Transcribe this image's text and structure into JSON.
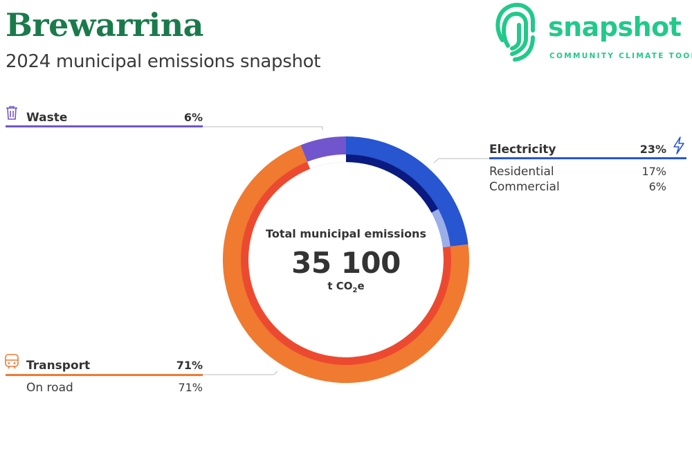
{
  "header": {
    "title": "Brewarrina",
    "subtitle": "2024 municipal emissions snapshot"
  },
  "logo": {
    "word": "snapshot",
    "tagline": "COMMUNITY CLIMATE TOOL",
    "color": "#22c98a"
  },
  "center": {
    "label": "Total municipal emissions",
    "value": "35 100",
    "unit_prefix": "t CO",
    "unit_sub": "2",
    "unit_suffix": "e"
  },
  "chart_data": {
    "type": "pie",
    "style": "donut",
    "total": 35100,
    "unit": "t CO2e",
    "sectors": [
      {
        "name": "Electricity",
        "value_pct": 23,
        "label": "23%",
        "color": "#2855d0",
        "icon": "lightning-icon",
        "subsectors": [
          {
            "name": "Residential",
            "value_pct": 17,
            "label": "17%",
            "color": "#0a1a80"
          },
          {
            "name": "Commercial",
            "value_pct": 6,
            "label": "6%",
            "color": "#9aaeea"
          }
        ]
      },
      {
        "name": "Transport",
        "value_pct": 71,
        "label": "71%",
        "color": "#f07a30",
        "icon": "train-icon",
        "subsectors": [
          {
            "name": "On road",
            "value_pct": 71,
            "label": "71%",
            "color": "#ec4a30"
          }
        ]
      },
      {
        "name": "Waste",
        "value_pct": 6,
        "label": "6%",
        "color": "#7155cc",
        "icon": "trash-icon",
        "subsectors": [
          {
            "name": "",
            "value_pct": 6,
            "label": "",
            "color": "#ffffff"
          }
        ]
      }
    ]
  }
}
